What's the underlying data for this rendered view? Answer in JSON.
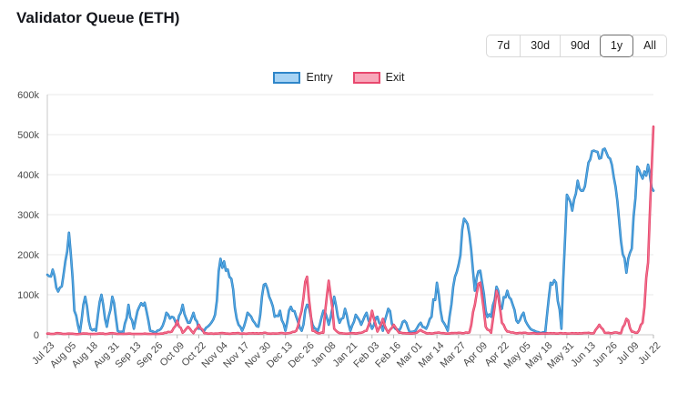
{
  "header": {
    "title": "Validator Queue (ETH)"
  },
  "range_buttons": {
    "options": [
      "7d",
      "30d",
      "90d",
      "1y",
      "All"
    ],
    "selected": "1y"
  },
  "legend": {
    "entries": [
      {
        "label": "Entry",
        "fill": "#a7d3f4",
        "border": "#2f86c9"
      },
      {
        "label": "Exit",
        "fill": "#f8a7ba",
        "border": "#e8486e"
      }
    ]
  },
  "chart_data": {
    "type": "line",
    "title": "Validator Queue (ETH)",
    "value_unit": "thousand",
    "ylim": [
      0,
      600
    ],
    "grid": true,
    "legend_position": "top-center",
    "y_ticks": [
      {
        "value": 0,
        "label": "0"
      },
      {
        "value": 100,
        "label": "100k"
      },
      {
        "value": 200,
        "label": "200k"
      },
      {
        "value": 300,
        "label": "300k"
      },
      {
        "value": 400,
        "label": "400k"
      },
      {
        "value": 500,
        "label": "500k"
      },
      {
        "value": 600,
        "label": "600k"
      }
    ],
    "x_tick_step": 4,
    "x_tick_labels": [
      "Jul 23",
      "Aug 05",
      "Aug 18",
      "Aug 31",
      "Sep 13",
      "Sep 26",
      "Oct 09",
      "Oct 22",
      "Nov 04",
      "Nov 17",
      "Nov 30",
      "Dec 13",
      "Dec 26",
      "Jan 08",
      "Jan 21",
      "Feb 03",
      "Feb 16",
      "Mar 01",
      "Mar 14",
      "Mar 27",
      "Apr 09",
      "Apr 22",
      "May 05",
      "May 18",
      "May 31",
      "Jun 13",
      "Jun 26",
      "Jul 09",
      "Jul 22"
    ],
    "series": [
      {
        "name": "Entry",
        "color": "#55aae6",
        "border_color": "#2b7fc0",
        "values": [
          150,
          163,
          108,
          150,
          255,
          60,
          5,
          95,
          15,
          10,
          100,
          20,
          95,
          10,
          5,
          75,
          15,
          70,
          80,
          10,
          5,
          15,
          55,
          45,
          25,
          75,
          30,
          55,
          15,
          10,
          25,
          50,
          190,
          160,
          140,
          40,
          10,
          55,
          35,
          20,
          125,
          95,
          45,
          60,
          10,
          70,
          45,
          10,
          75,
          25,
          10,
          60,
          25,
          95,
          30,
          65,
          10,
          50,
          25,
          55,
          15,
          45,
          10,
          65,
          20,
          10,
          35,
          5,
          10,
          30,
          15,
          45,
          130,
          35,
          10,
          120,
          175,
          290,
          250,
          110,
          160,
          60,
          45,
          120,
          65,
          110,
          75,
          30,
          55,
          20,
          10,
          5,
          5,
          130,
          130,
          15,
          350,
          310,
          385,
          360,
          430,
          460,
          440,
          465,
          440,
          370,
          235,
          155,
          215,
          420,
          390,
          425,
          360
        ]
      },
      {
        "name": "Exit",
        "color": "#f4738f",
        "border_color": "#e23a63",
        "values": [
          3,
          2,
          4,
          2,
          3,
          2,
          2,
          3,
          2,
          2,
          3,
          2,
          4,
          2,
          2,
          3,
          2,
          2,
          3,
          2,
          2,
          3,
          5,
          8,
          35,
          5,
          20,
          4,
          25,
          4,
          3,
          3,
          4,
          3,
          3,
          4,
          3,
          3,
          4,
          3,
          5,
          3,
          3,
          4,
          3,
          5,
          10,
          60,
          145,
          10,
          4,
          5,
          135,
          15,
          4,
          3,
          4,
          3,
          5,
          10,
          60,
          8,
          40,
          5,
          25,
          5,
          4,
          3,
          4,
          12,
          4,
          3,
          5,
          4,
          3,
          4,
          5,
          4,
          6,
          75,
          130,
          20,
          5,
          110,
          30,
          8,
          6,
          4,
          5,
          3,
          4,
          3,
          3,
          4,
          3,
          4,
          3,
          4,
          3,
          4,
          5,
          4,
          25,
          5,
          4,
          6,
          4,
          40,
          8,
          5,
          30,
          180,
          520
        ]
      }
    ]
  }
}
